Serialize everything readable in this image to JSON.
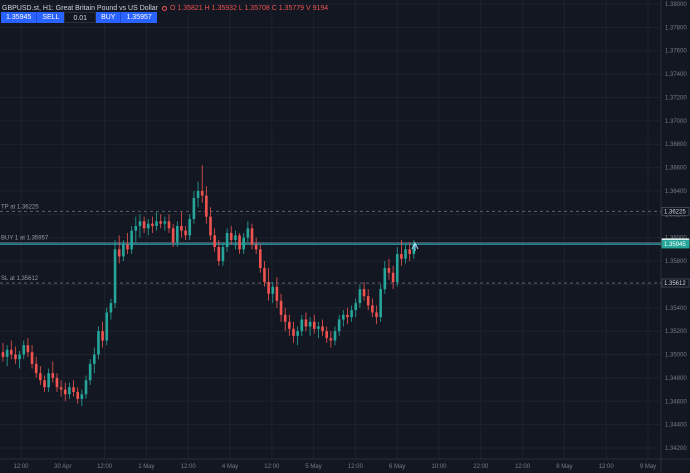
{
  "header": {
    "symbol": "GBPUSD.st, H1: Great Britain Pound vs US Dollar",
    "ohlcv": "O 1.35821 H 1.35932 L 1.35708 C 1.35779 V 9194"
  },
  "trade_panel": {
    "sell_price": "1.35945",
    "sell_label": "SELL",
    "lot": "0.01",
    "buy_label": "BUY",
    "buy_price": "1.35957"
  },
  "colors": {
    "background": "#131722",
    "up": "#26a69a",
    "down": "#ef5350",
    "grid": "#1e222d",
    "axis_text": "#787b86"
  },
  "chart_data": {
    "type": "candlestick",
    "ylim": [
      1.342,
      1.38
    ],
    "y_ticks": [
      "1.38000",
      "1.37800",
      "1.37600",
      "1.37400",
      "1.37200",
      "1.37000",
      "1.36800",
      "1.36600",
      "1.36400",
      "1.36200",
      "1.36000",
      "1.35800",
      "1.35600",
      "1.35400",
      "1.35200",
      "1.35000",
      "1.34800",
      "1.34600",
      "1.34400",
      "1.34200"
    ],
    "x_ticks": [
      "12:00",
      "30 Apr",
      "12:00",
      "1 May",
      "12:00",
      "4 May",
      "12:00",
      "5 May",
      "12:00",
      "6 May",
      "10:00",
      "22:00",
      "12:00",
      "8 May",
      "12:00",
      "9 May"
    ],
    "levels": [
      {
        "label": "TP at 1.36225",
        "value": 1.36225,
        "badge": "1.36225"
      },
      {
        "label": "BUY 1 at 1.35957",
        "value": 1.35957,
        "badge": "1.35957"
      },
      {
        "label": "",
        "value": 1.35945,
        "badge": "1.35945"
      },
      {
        "label": "SL at 1.35612",
        "value": 1.35612,
        "badge": "1.35612"
      }
    ],
    "candles": [
      [
        1.3502,
        1.351,
        1.3494,
        1.3498
      ],
      [
        1.3498,
        1.3508,
        1.349,
        1.3504
      ],
      [
        1.3504,
        1.3512,
        1.3496,
        1.35
      ],
      [
        1.35,
        1.3507,
        1.3492,
        1.3496
      ],
      [
        1.3496,
        1.3503,
        1.3488,
        1.35
      ],
      [
        1.35,
        1.3512,
        1.3496,
        1.3508
      ],
      [
        1.3508,
        1.3514,
        1.3498,
        1.3502
      ],
      [
        1.3502,
        1.3508,
        1.3488,
        1.3492
      ],
      [
        1.3492,
        1.3498,
        1.348,
        1.3484
      ],
      [
        1.3484,
        1.349,
        1.3474,
        1.3478
      ],
      [
        1.3478,
        1.3482,
        1.3468,
        1.3472
      ],
      [
        1.3472,
        1.3488,
        1.3468,
        1.3484
      ],
      [
        1.3484,
        1.3494,
        1.3476,
        1.348
      ],
      [
        1.348,
        1.3484,
        1.3468,
        1.3472
      ],
      [
        1.3472,
        1.3478,
        1.3464,
        1.347
      ],
      [
        1.347,
        1.3476,
        1.346,
        1.3466
      ],
      [
        1.3466,
        1.3476,
        1.3462,
        1.3472
      ],
      [
        1.3472,
        1.3478,
        1.3464,
        1.3468
      ],
      [
        1.3468,
        1.3472,
        1.3458,
        1.3462
      ],
      [
        1.3462,
        1.347,
        1.3456,
        1.3466
      ],
      [
        1.3466,
        1.3482,
        1.3462,
        1.3478
      ],
      [
        1.3478,
        1.3496,
        1.3474,
        1.3492
      ],
      [
        1.3492,
        1.3506,
        1.3484,
        1.35
      ],
      [
        1.35,
        1.3524,
        1.3496,
        1.352
      ],
      [
        1.352,
        1.3528,
        1.3506,
        1.3512
      ],
      [
        1.3512,
        1.354,
        1.3508,
        1.3536
      ],
      [
        1.3536,
        1.3548,
        1.353,
        1.3544
      ],
      [
        1.3544,
        1.3598,
        1.354,
        1.359
      ],
      [
        1.359,
        1.3602,
        1.3578,
        1.3584
      ],
      [
        1.3584,
        1.3598,
        1.358,
        1.3594
      ],
      [
        1.3594,
        1.3604,
        1.3586,
        1.359
      ],
      [
        1.359,
        1.361,
        1.3586,
        1.3606
      ],
      [
        1.3606,
        1.3618,
        1.3596,
        1.361
      ],
      [
        1.361,
        1.362,
        1.36,
        1.3614
      ],
      [
        1.3614,
        1.3618,
        1.3604,
        1.3608
      ],
      [
        1.3608,
        1.3616,
        1.3602,
        1.3612
      ],
      [
        1.3612,
        1.3618,
        1.3604,
        1.361
      ],
      [
        1.361,
        1.3622,
        1.3606,
        1.3614
      ],
      [
        1.3614,
        1.362,
        1.3608,
        1.3612
      ],
      [
        1.3612,
        1.3618,
        1.3606,
        1.3614
      ],
      [
        1.3614,
        1.362,
        1.3604,
        1.3608
      ],
      [
        1.3608,
        1.3612,
        1.3592,
        1.3596
      ],
      [
        1.3596,
        1.3614,
        1.3592,
        1.361
      ],
      [
        1.361,
        1.3622,
        1.36,
        1.3606
      ],
      [
        1.3606,
        1.361,
        1.3598,
        1.3602
      ],
      [
        1.3602,
        1.362,
        1.3598,
        1.3616
      ],
      [
        1.3616,
        1.364,
        1.3612,
        1.3634
      ],
      [
        1.3634,
        1.3648,
        1.3626,
        1.364
      ],
      [
        1.364,
        1.3662,
        1.363,
        1.3636
      ],
      [
        1.3636,
        1.3644,
        1.3612,
        1.3618
      ],
      [
        1.3618,
        1.3626,
        1.3598,
        1.3602
      ],
      [
        1.3602,
        1.3608,
        1.3588,
        1.3592
      ],
      [
        1.3592,
        1.3598,
        1.3576,
        1.358
      ],
      [
        1.358,
        1.3596,
        1.3576,
        1.3592
      ],
      [
        1.3592,
        1.3608,
        1.3588,
        1.3604
      ],
      [
        1.3604,
        1.361,
        1.3594,
        1.3598
      ],
      [
        1.3598,
        1.3606,
        1.359,
        1.3602
      ],
      [
        1.3602,
        1.3604,
        1.3586,
        1.359
      ],
      [
        1.359,
        1.3604,
        1.3586,
        1.36
      ],
      [
        1.36,
        1.3614,
        1.3596,
        1.3608
      ],
      [
        1.3608,
        1.3612,
        1.359,
        1.3594
      ],
      [
        1.3594,
        1.36,
        1.3586,
        1.359
      ],
      [
        1.359,
        1.3594,
        1.357,
        1.3574
      ],
      [
        1.3574,
        1.358,
        1.3558,
        1.3562
      ],
      [
        1.3562,
        1.3574,
        1.3546,
        1.3552
      ],
      [
        1.3552,
        1.3562,
        1.3544,
        1.3558
      ],
      [
        1.3558,
        1.3566,
        1.354,
        1.3546
      ],
      [
        1.3546,
        1.3552,
        1.3528,
        1.3534
      ],
      [
        1.3534,
        1.354,
        1.352,
        1.3528
      ],
      [
        1.3528,
        1.3534,
        1.3516,
        1.3522
      ],
      [
        1.3522,
        1.3528,
        1.351,
        1.3516
      ],
      [
        1.3516,
        1.3524,
        1.3508,
        1.352
      ],
      [
        1.352,
        1.3534,
        1.3516,
        1.353
      ],
      [
        1.353,
        1.3536,
        1.352,
        1.3524
      ],
      [
        1.3524,
        1.3532,
        1.3516,
        1.3528
      ],
      [
        1.3528,
        1.3534,
        1.3518,
        1.3522
      ],
      [
        1.3522,
        1.3528,
        1.3514,
        1.3524
      ],
      [
        1.3524,
        1.353,
        1.3516,
        1.352
      ],
      [
        1.352,
        1.3524,
        1.351,
        1.3514
      ],
      [
        1.3514,
        1.352,
        1.3506,
        1.3512
      ],
      [
        1.3512,
        1.3524,
        1.3508,
        1.352
      ],
      [
        1.352,
        1.3534,
        1.3516,
        1.353
      ],
      [
        1.353,
        1.3538,
        1.3524,
        1.3534
      ],
      [
        1.3534,
        1.354,
        1.3526,
        1.3532
      ],
      [
        1.3532,
        1.3542,
        1.3528,
        1.3538
      ],
      [
        1.3538,
        1.3548,
        1.3532,
        1.3544
      ],
      [
        1.3544,
        1.356,
        1.354,
        1.3556
      ],
      [
        1.3556,
        1.3562,
        1.3546,
        1.355
      ],
      [
        1.355,
        1.3556,
        1.3538,
        1.3542
      ],
      [
        1.3542,
        1.3548,
        1.3532,
        1.3536
      ],
      [
        1.3536,
        1.3542,
        1.3526,
        1.3532
      ],
      [
        1.3532,
        1.356,
        1.3528,
        1.3556
      ],
      [
        1.3556,
        1.358,
        1.3552,
        1.3574
      ],
      [
        1.3574,
        1.3582,
        1.3564,
        1.357
      ],
      [
        1.357,
        1.3576,
        1.3556,
        1.3562
      ],
      [
        1.3562,
        1.3592,
        1.3558,
        1.3586
      ],
      [
        1.3586,
        1.3598,
        1.3576,
        1.3582
      ],
      [
        1.3582,
        1.3594,
        1.3578,
        1.359
      ],
      [
        1.359,
        1.3596,
        1.358,
        1.3586
      ],
      [
        1.3586,
        1.3598,
        1.3582,
        1.3595
      ]
    ]
  }
}
